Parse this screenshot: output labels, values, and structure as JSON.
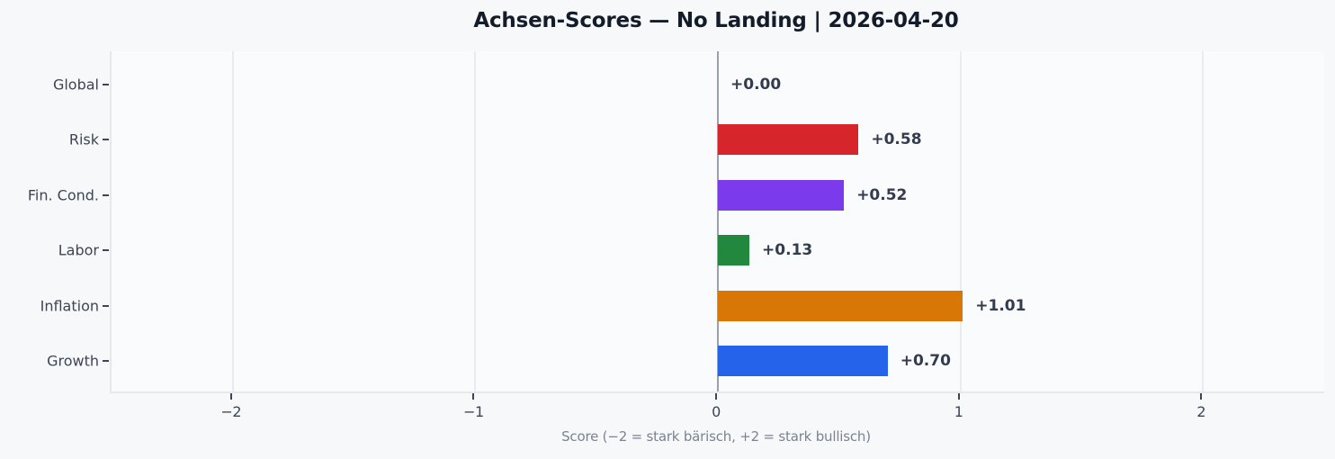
{
  "title": "Achsen-Scores — No Landing | 2026-04-20",
  "chart_data": {
    "type": "bar",
    "orientation": "horizontal",
    "title": "Achsen-Scores — No Landing | 2026-04-20",
    "xlabel": "Score (−2 = stark bärisch, +2 = stark bullisch)",
    "categories": [
      "Global",
      "Risk",
      "Fin. Cond.",
      "Labor",
      "Inflation",
      "Growth"
    ],
    "values": [
      0.0,
      0.58,
      0.52,
      0.13,
      1.01,
      0.7
    ],
    "value_labels": [
      "+0.00",
      "+0.58",
      "+0.52",
      "+0.13",
      "+1.01",
      "+0.70"
    ],
    "bar_colors": [
      null,
      "#d7262b",
      "#7c3aed",
      "#22883d",
      "#d97706",
      "#2563eb"
    ],
    "xlim": [
      -2.5,
      2.5
    ],
    "x_ticks": [
      -2,
      -1,
      0,
      1,
      2
    ],
    "x_tick_labels": [
      "−2",
      "−1",
      "0",
      "1",
      "2"
    ],
    "grid": true,
    "zero_line": true,
    "legend": false
  },
  "colors": {
    "figure_background": "#f7f8fa",
    "plot_background": "#fafbfd",
    "gridline": "#e9ebee",
    "zero_line": "#9aa1ab",
    "title_text": "#131c2b",
    "axis_text": "#3d4454",
    "value_text": "#333c4e",
    "xlabel_text": "#7b8391"
  }
}
